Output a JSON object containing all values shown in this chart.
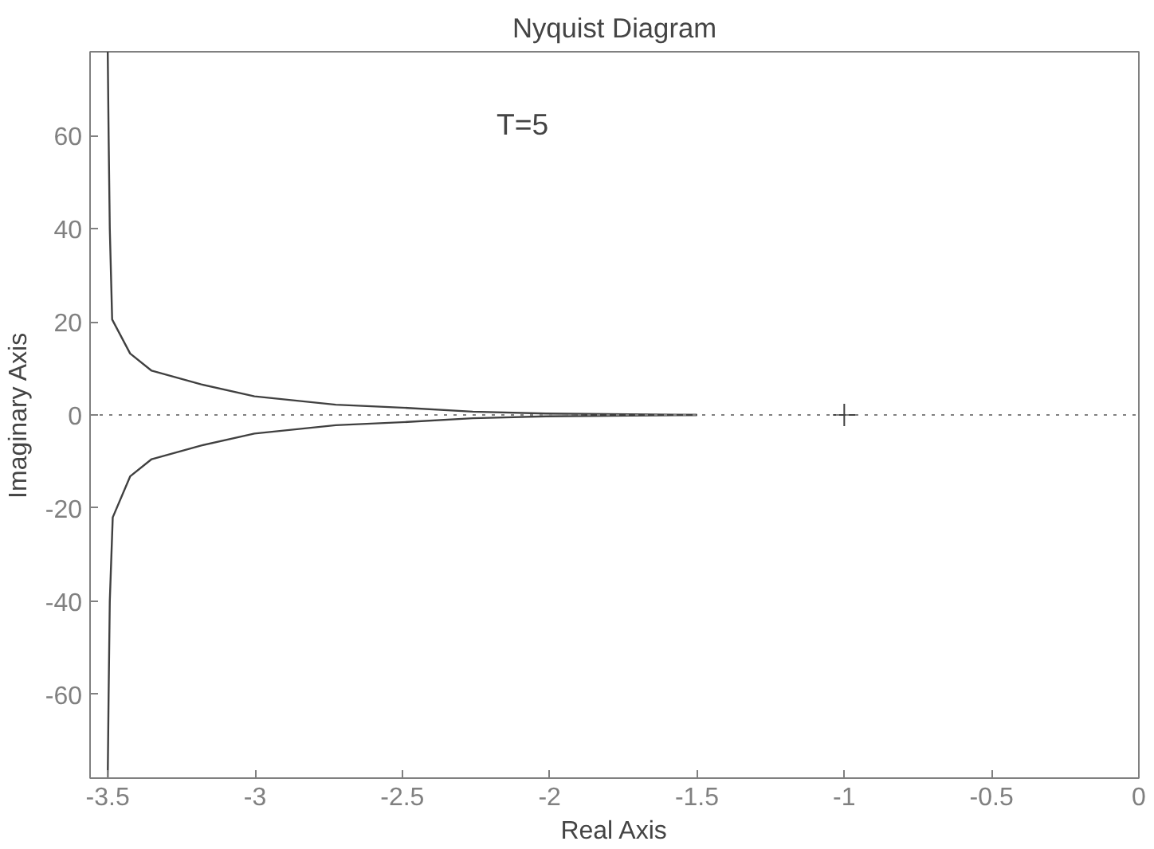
{
  "chart_data": {
    "type": "line",
    "title": "Nyquist Diagram",
    "xlabel": "Real Axis",
    "ylabel": "Imaginary Axis",
    "annotations": [
      "T=5"
    ],
    "xlim": [
      -3.56,
      0
    ],
    "ylim": [
      -78,
      78
    ],
    "xticks": [
      -3.5,
      -3,
      -2.5,
      -2,
      -1.5,
      -1,
      -0.5,
      0
    ],
    "yticks": [
      -60,
      -40,
      -20,
      0,
      20,
      40,
      60
    ],
    "grid": false,
    "ref_lines": [
      {
        "axis": "y",
        "value": 0,
        "color": "#808080",
        "line_style": "dotted"
      }
    ],
    "series": [
      {
        "color": "#404040",
        "x": [
          -3.5,
          -3.497,
          -3.493,
          -3.485,
          -3.424,
          -3.351,
          -3.185,
          -3.002,
          -2.726,
          -2.482,
          -2.261,
          -2.012,
          -1.5
        ],
        "values": [
          78,
          60,
          40,
          20.5,
          13.2,
          9.5,
          6.6,
          4.0,
          2.2,
          1.5,
          0.7,
          0.3,
          0
        ]
      },
      {
        "color": "#404040",
        "x": [
          -3.5,
          -3.497,
          -3.493,
          -3.483,
          -3.424,
          -3.351,
          -3.185,
          -3.002,
          -2.726,
          -2.482,
          -2.261,
          -2.012,
          -1.5
        ],
        "values": [
          -78,
          -60,
          -40,
          -22,
          -13.2,
          -9.5,
          -6.6,
          -4.0,
          -2.2,
          -1.5,
          -0.7,
          -0.3,
          0
        ]
      },
      {
        "type": "scatter",
        "marker": "cross",
        "color": "#404040",
        "x": [
          -1
        ],
        "values": [
          0
        ]
      }
    ]
  }
}
